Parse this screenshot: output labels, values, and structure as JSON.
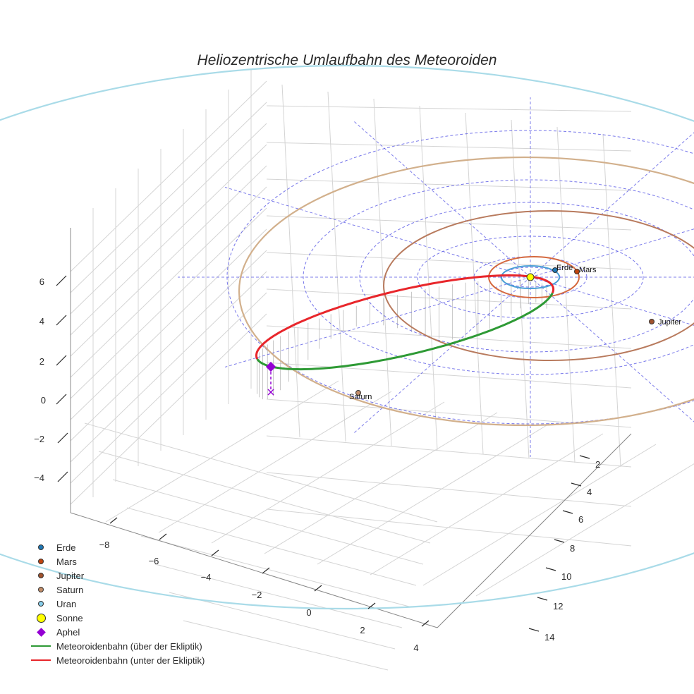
{
  "chart_data": {
    "type": "line",
    "title": "Heliozentrische Umlaufbahn des Meteoroiden",
    "axes": {
      "x": {
        "ticks": [
          "−8",
          "−6",
          "−4",
          "−2",
          "0",
          "2",
          "4"
        ]
      },
      "y": {
        "ticks": [
          "2",
          "4",
          "6",
          "8",
          "10",
          "12",
          "14"
        ]
      },
      "z": {
        "ticks": [
          "6",
          "4",
          "2",
          "0",
          "−2",
          "−4"
        ]
      }
    },
    "planets": [
      {
        "name": "Erde",
        "label": "Erde",
        "color": "#1f77b4",
        "orbit_color": "#4a9fd5"
      },
      {
        "name": "Mars",
        "label": "Mars",
        "color": "#c1440e",
        "orbit_color": "#d5693f"
      },
      {
        "name": "Jupiter",
        "label": "Jupiter",
        "color": "#a0522d",
        "orbit_color": "#b87a5d"
      },
      {
        "name": "Saturn",
        "label": "Saturn",
        "color": "#c28e6a",
        "orbit_color": "#d2b08c"
      },
      {
        "name": "Uran",
        "color": "#87ceeb",
        "orbit_color": "#a9dbe8"
      }
    ],
    "sun": {
      "name": "Sonne",
      "color": "#ffff00"
    },
    "aphel": {
      "name": "Aphel",
      "color": "#9400d3"
    },
    "series": [
      {
        "name": "Meteoroidenbahn (über der Ekliptik)",
        "color": "#2e9a35"
      },
      {
        "name": "Meteoroidenbahn (unter der Ekliptik)",
        "color": "#e8262b"
      }
    ],
    "legend_position": "bottom-left"
  },
  "legend": [
    {
      "label": "Erde",
      "kind": "dot",
      "color": "#1f77b4"
    },
    {
      "label": "Mars",
      "kind": "dot",
      "color": "#c1440e"
    },
    {
      "label": "Jupiter",
      "kind": "dot",
      "color": "#a0522d"
    },
    {
      "label": "Saturn",
      "kind": "dot",
      "color": "#c28e6a"
    },
    {
      "label": "Uran",
      "kind": "dot",
      "color": "#87ceeb"
    },
    {
      "label": "Sonne",
      "kind": "bigdot",
      "color": "#ffff00"
    },
    {
      "label": "Aphel",
      "kind": "diamond",
      "color": "#9400d3"
    },
    {
      "label": "Meteoroidenbahn (über der Ekliptik)",
      "kind": "line",
      "color": "#2e9a35"
    },
    {
      "label": "Meteoroidenbahn (unter der Ekliptik)",
      "kind": "line",
      "color": "#e8262b"
    }
  ]
}
